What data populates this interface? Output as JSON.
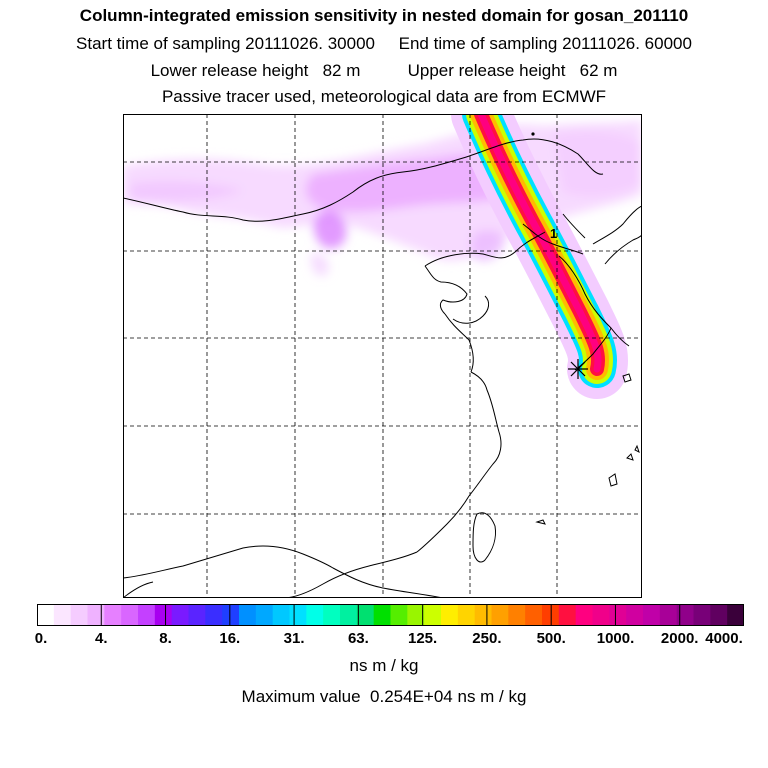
{
  "header": {
    "title": "Column-integrated emission sensitivity in nested domain for gosan_201110",
    "start_label": "Start time of sampling",
    "start_value": "20111026. 30000",
    "end_label": "End time of sampling",
    "end_value": "20111026. 60000",
    "lower_label": "Lower release height",
    "lower_value": "82 m",
    "upper_label": "Upper release height",
    "upper_value": "62 m",
    "tracer_note": "Passive tracer used, meteorological data are from ECMWF"
  },
  "map": {
    "release_marker": "asterisk-icon",
    "trajectory_label": "1",
    "grid": "dashed"
  },
  "colorbar": {
    "unit": "ns m / kg",
    "tick_labels": [
      "0.",
      "4.",
      "8.",
      "16.",
      "31.",
      "63.",
      "125.",
      "250.",
      "500.",
      "1000.",
      "2000.",
      "4000."
    ],
    "colors": [
      "#ffffff",
      "#fbe6ff",
      "#f5ccff",
      "#efb2ff",
      "#e680ff",
      "#d966ff",
      "#c440ff",
      "#a800f0",
      "#7a1aff",
      "#5a24ff",
      "#3a2eff",
      "#1f3fff",
      "#0090ff",
      "#00a8ff",
      "#00c8ff",
      "#00e0ff",
      "#00ffe8",
      "#00ffc0",
      "#00f0a0",
      "#00e070",
      "#00e000",
      "#55ee00",
      "#99f500",
      "#ccff00",
      "#ffee00",
      "#ffd400",
      "#ffbb00",
      "#ffa000",
      "#ff8000",
      "#ff6000",
      "#ff3e00",
      "#ff1040",
      "#ff0080",
      "#f0008a",
      "#e00095",
      "#d000a0",
      "#c000a8",
      "#a80098",
      "#90008a",
      "#780078",
      "#600060",
      "#3a003a"
    ]
  },
  "footer": {
    "max_label": "Maximum value",
    "max_value": "0.254E+04",
    "max_unit": "ns m / kg"
  }
}
